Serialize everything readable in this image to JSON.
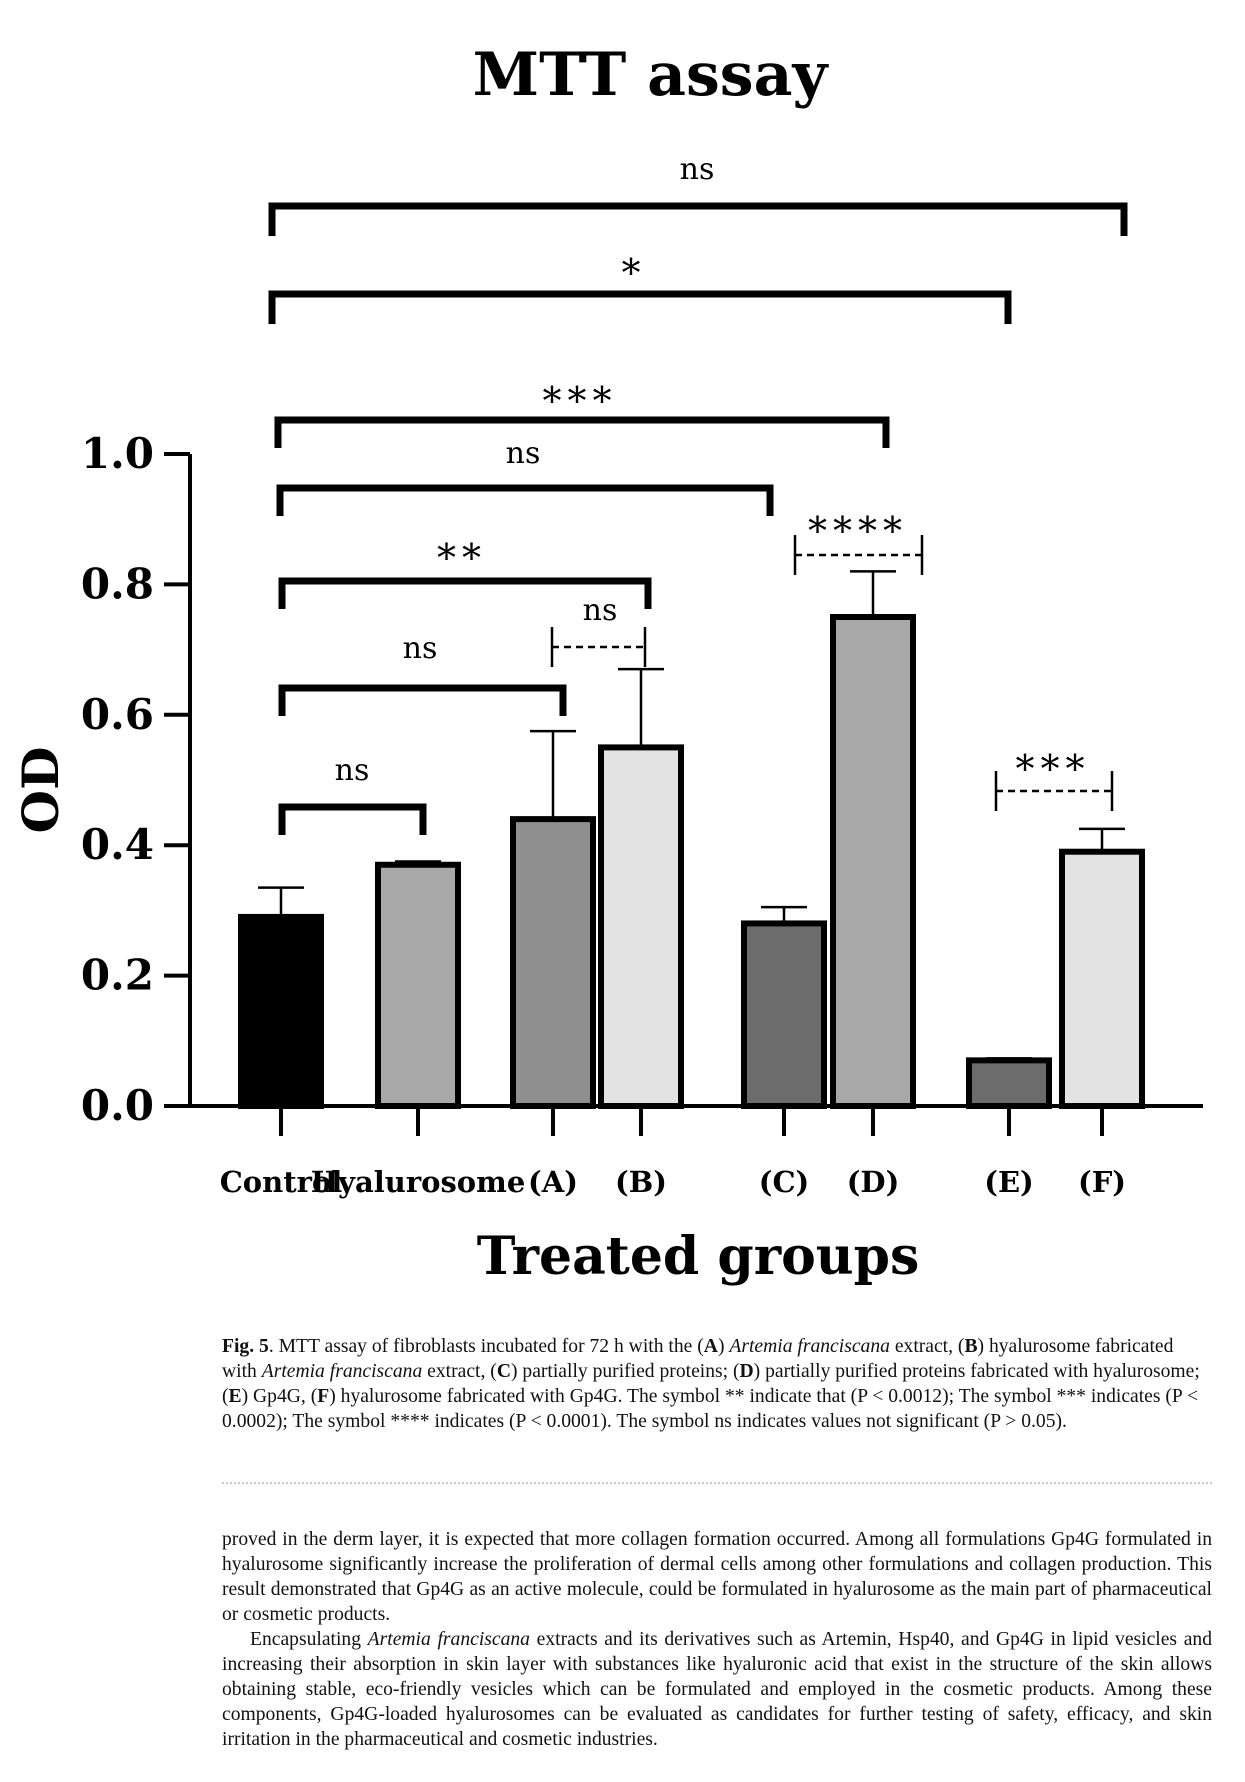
{
  "chart_data": {
    "type": "bar",
    "title": "MTT assay",
    "xlabel": "Treated groups",
    "ylabel": "OD",
    "ylim": [
      0,
      1.0
    ],
    "yticks": [
      "0.0",
      "0.2",
      "0.4",
      "0.6",
      "0.8",
      "1.0"
    ],
    "grid": false,
    "categories": [
      "Control",
      "Hyalurosome",
      "(A)",
      "(B)",
      "(C)",
      "(D)",
      "(E)",
      "(F)"
    ],
    "values": [
      0.29,
      0.37,
      0.44,
      0.55,
      0.28,
      0.75,
      0.07,
      0.39
    ],
    "errors": [
      0.045,
      0.005,
      0.135,
      0.12,
      0.025,
      0.07,
      0.003,
      0.035
    ],
    "bar_colors": [
      "#000000",
      "#a8a8a8",
      "#8f8f8f",
      "#e3e3e3",
      "#6c6c6c",
      "#a8a8a8",
      "#6c6c6c",
      "#e3e3e3"
    ],
    "comparisons": [
      {
        "from": "Control",
        "to": "(F)",
        "label": "ns",
        "style": "solid"
      },
      {
        "from": "Control",
        "to": "(E)",
        "label": "*",
        "style": "solid"
      },
      {
        "from": "Control",
        "to": "(D)",
        "label": "***",
        "style": "solid"
      },
      {
        "from": "Control",
        "to": "(C)",
        "label": "ns",
        "style": "solid"
      },
      {
        "from": "Control",
        "to": "(B)",
        "label": "**",
        "style": "solid"
      },
      {
        "from": "Control",
        "to": "(A)",
        "label": "ns",
        "style": "solid"
      },
      {
        "from": "Control",
        "to": "Hyalurosome",
        "label": "ns",
        "style": "solid"
      },
      {
        "from": "(A)",
        "to": "(B)",
        "label": "ns",
        "style": "dashed"
      },
      {
        "from": "(C)",
        "to": "(D)",
        "label": "****",
        "style": "dashed"
      },
      {
        "from": "(E)",
        "to": "(F)",
        "label": "***",
        "style": "dashed"
      }
    ]
  },
  "caption": {
    "fig_label": "Fig. 5",
    "segments": [
      {
        "t": ".  MTT assay of fibroblasts incubated for 72 h with the (",
        "s": "n"
      },
      {
        "t": "A",
        "s": "b"
      },
      {
        "t": ") ",
        "s": "n"
      },
      {
        "t": "Artemia franciscana",
        "s": "i"
      },
      {
        "t": " extract, (",
        "s": "n"
      },
      {
        "t": "B",
        "s": "b"
      },
      {
        "t": ") hyalurosome fabricated with ",
        "s": "n"
      },
      {
        "t": "Artemia franciscana",
        "s": "i"
      },
      {
        "t": " extract, (",
        "s": "n"
      },
      {
        "t": "C",
        "s": "b"
      },
      {
        "t": ") partially purified proteins; (",
        "s": "n"
      },
      {
        "t": "D",
        "s": "b"
      },
      {
        "t": ") partially purified proteins fabricated with hyalurosome; (",
        "s": "n"
      },
      {
        "t": "E",
        "s": "b"
      },
      {
        "t": ") Gp4G, (",
        "s": "n"
      },
      {
        "t": "F",
        "s": "b"
      },
      {
        "t": ") hyalurosome fabricated with Gp4G. The symbol ** indicate that (P < 0.0012); The symbol *** indicates (P < 0.0002); The symbol **** indicates (P < 0.0001). The symbol ns indicates values not significant (P > 0.05).",
        "s": "n"
      }
    ]
  },
  "body": {
    "paragraph1": "proved in the derm layer, it is expected that more collagen formation occurred. Among all formulations Gp4G formulated in hyalurosome significantly increase the proliferation of dermal cells among other formulations and collagen production. This result demonstrated that Gp4G as an active molecule, could be formulated in hyalurosome as the main part of pharmaceutical or cosmetic products.",
    "paragraph2_segments": [
      {
        "t": "Encapsulating ",
        "s": "n"
      },
      {
        "t": "Artemia franciscana",
        "s": "i"
      },
      {
        "t": " extracts and its derivatives such as Artemin, Hsp40, and Gp4G in lipid vesicles and increasing their absorption in skin layer with substances like hyaluronic acid that exist in the structure of the skin allows obtaining stable, eco-friendly vesicles which can be formulated and employed in the cosmetic products. Among these components, Gp4G-loaded hyalurosomes can be evaluated as candidates for further testing of safety, efficacy, and skin irritation in the pharmaceutical and cosmetic industries.",
        "s": "n"
      }
    ]
  }
}
